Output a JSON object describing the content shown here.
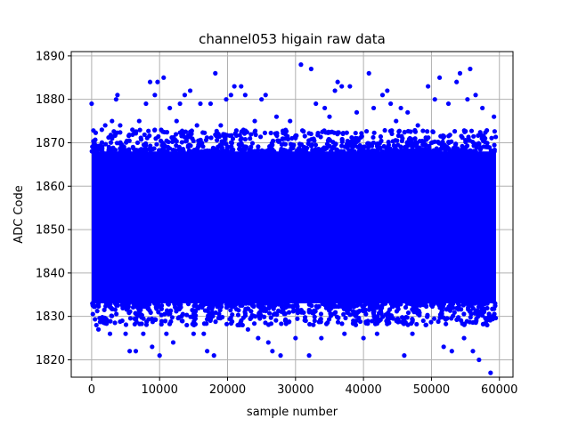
{
  "chart_data": {
    "type": "scatter",
    "title": "channel053 higain raw data",
    "xlabel": "sample number",
    "ylabel": "ADC Code",
    "xlim": [
      -3000,
      62000
    ],
    "ylim": [
      1816,
      1891
    ],
    "x_ticks": [
      0,
      10000,
      20000,
      30000,
      40000,
      50000,
      60000
    ],
    "y_ticks": [
      1820,
      1830,
      1840,
      1850,
      1860,
      1870,
      1880,
      1890
    ],
    "grid": true,
    "marker_color": "#0000ff",
    "series": [
      {
        "n_samples": 59500,
        "dense_band": {
          "x_range": [
            0,
            59500
          ],
          "y_range": [
            1832,
            1869
          ]
        },
        "outliers": [
          [
            0,
            1879
          ],
          [
            400,
            1870
          ],
          [
            700,
            1828
          ],
          [
            1000,
            1827
          ],
          [
            1500,
            1873
          ],
          [
            2000,
            1874
          ],
          [
            2300,
            1829
          ],
          [
            2700,
            1826
          ],
          [
            3000,
            1875
          ],
          [
            3600,
            1880
          ],
          [
            3800,
            1881
          ],
          [
            4200,
            1874
          ],
          [
            4500,
            1829
          ],
          [
            5000,
            1826
          ],
          [
            5600,
            1822
          ],
          [
            6000,
            1873
          ],
          [
            6500,
            1822
          ],
          [
            7000,
            1875
          ],
          [
            7600,
            1826
          ],
          [
            8000,
            1879
          ],
          [
            8600,
            1884
          ],
          [
            8900,
            1823
          ],
          [
            9300,
            1881
          ],
          [
            9700,
            1884
          ],
          [
            10000,
            1821
          ],
          [
            10600,
            1885
          ],
          [
            11000,
            1826
          ],
          [
            11500,
            1878
          ],
          [
            12000,
            1824
          ],
          [
            12500,
            1875
          ],
          [
            13000,
            1879
          ],
          [
            13700,
            1881
          ],
          [
            14000,
            1828
          ],
          [
            14500,
            1882
          ],
          [
            15000,
            1826
          ],
          [
            15500,
            1874
          ],
          [
            16000,
            1879
          ],
          [
            16500,
            1826
          ],
          [
            17000,
            1822
          ],
          [
            17500,
            1879
          ],
          [
            18000,
            1821
          ],
          [
            18200,
            1886
          ],
          [
            19000,
            1874
          ],
          [
            19800,
            1880
          ],
          [
            20500,
            1881
          ],
          [
            21000,
            1883
          ],
          [
            21500,
            1828
          ],
          [
            22000,
            1883
          ],
          [
            22600,
            1881
          ],
          [
            23000,
            1827
          ],
          [
            24000,
            1875
          ],
          [
            24500,
            1825
          ],
          [
            25000,
            1880
          ],
          [
            25600,
            1881
          ],
          [
            26000,
            1824
          ],
          [
            26600,
            1822
          ],
          [
            27200,
            1876
          ],
          [
            27800,
            1821
          ],
          [
            28500,
            1829
          ],
          [
            29200,
            1875
          ],
          [
            30000,
            1825
          ],
          [
            30800,
            1888
          ],
          [
            31500,
            1829
          ],
          [
            32000,
            1821
          ],
          [
            32300,
            1887
          ],
          [
            33000,
            1879
          ],
          [
            33800,
            1825
          ],
          [
            34300,
            1878
          ],
          [
            35000,
            1876
          ],
          [
            35800,
            1882
          ],
          [
            36200,
            1884
          ],
          [
            36800,
            1883
          ],
          [
            37200,
            1826
          ],
          [
            38000,
            1883
          ],
          [
            38500,
            1829
          ],
          [
            39000,
            1877
          ],
          [
            40000,
            1825
          ],
          [
            40800,
            1886
          ],
          [
            41500,
            1878
          ],
          [
            42000,
            1826
          ],
          [
            42800,
            1881
          ],
          [
            43500,
            1882
          ],
          [
            44000,
            1879
          ],
          [
            44800,
            1875
          ],
          [
            45500,
            1878
          ],
          [
            46000,
            1821
          ],
          [
            46500,
            1877
          ],
          [
            47200,
            1826
          ],
          [
            48000,
            1874
          ],
          [
            48800,
            1829
          ],
          [
            49500,
            1883
          ],
          [
            50500,
            1880
          ],
          [
            51200,
            1885
          ],
          [
            51800,
            1823
          ],
          [
            52500,
            1879
          ],
          [
            53000,
            1822
          ],
          [
            53700,
            1884
          ],
          [
            54200,
            1886
          ],
          [
            54800,
            1825
          ],
          [
            55300,
            1880
          ],
          [
            55700,
            1887
          ],
          [
            56100,
            1822
          ],
          [
            56500,
            1881
          ],
          [
            57000,
            1820
          ],
          [
            57500,
            1878
          ],
          [
            58200,
            1828
          ],
          [
            58700,
            1817
          ],
          [
            59200,
            1876
          ]
        ]
      }
    ]
  }
}
